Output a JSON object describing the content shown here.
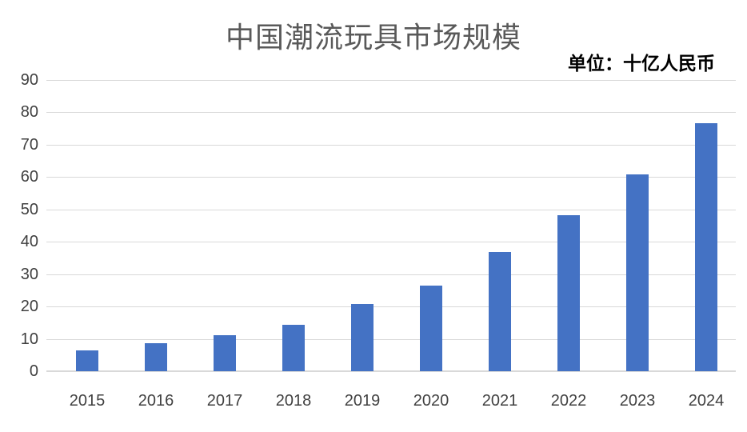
{
  "chart_data": {
    "type": "bar",
    "title": "中国潮流玩具市场规模",
    "unit_label": "单位：十亿人民币",
    "categories": [
      "2015",
      "2016",
      "2017",
      "2018",
      "2019",
      "2020",
      "2021",
      "2022",
      "2023",
      "2024"
    ],
    "values": [
      6.3,
      8.3,
      11,
      14,
      20.6,
      26.2,
      36.6,
      47.9,
      60.6,
      76.4
    ],
    "xlabel": "",
    "ylabel": "",
    "ylim": [
      0,
      90
    ],
    "ytick_step": 10,
    "ytick_labels": [
      "0",
      "10",
      "20",
      "30",
      "40",
      "50",
      "60",
      "70",
      "80",
      "90"
    ],
    "grid": "horizontal",
    "legend": "none",
    "colors": {
      "bar": "#4472C4",
      "gridline": "#d9d9d9",
      "title_text": "#595959",
      "tick_text": "#404040",
      "unit_text": "#000000",
      "background": "#ffffff"
    }
  }
}
